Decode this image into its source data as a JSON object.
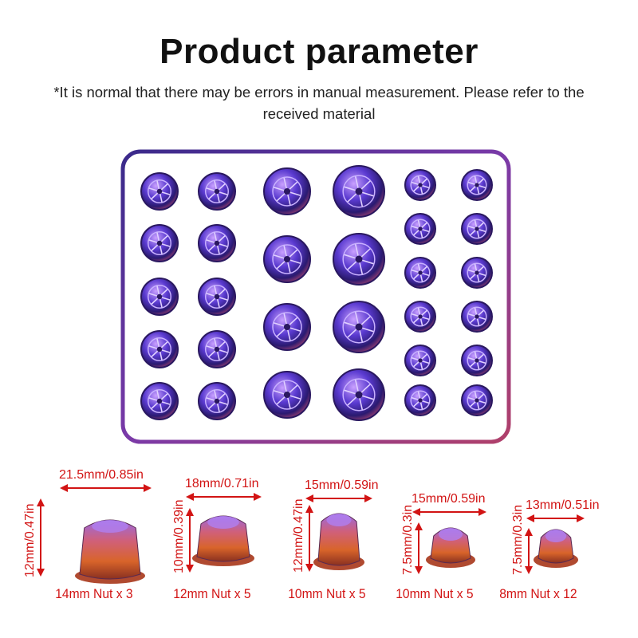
{
  "title": "Product parameter",
  "subtitle": "*It is normal that there may be errors in manual measurement. Please refer to the received material",
  "colors": {
    "label_red": "#d21414",
    "metal_purple": "#6a3fd0",
    "metal_orange": "#d8642a"
  },
  "nuts": [
    {
      "width": "21.5mm/0.85in",
      "height": "12mm/0.47in",
      "caption": "14mm Nut x 3"
    },
    {
      "width": "18mm/0.71in",
      "height": "10mm/0.39in",
      "caption": "12mm Nut x 5"
    },
    {
      "width": "15mm/0.59in",
      "height": "12mm/0.47in",
      "caption": "10mm Nut x 5"
    },
    {
      "width": "15mm/0.59in",
      "height": "7.5mm/0.3in",
      "caption": "10mm Nut x 5"
    },
    {
      "width": "13mm/0.51in",
      "height": "7.5mm/0.3in",
      "caption": "8mm Nut x 12"
    }
  ]
}
